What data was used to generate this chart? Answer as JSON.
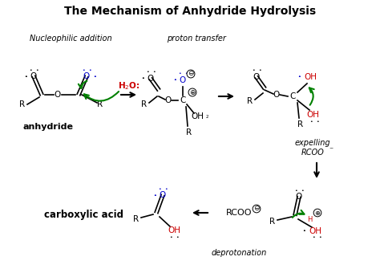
{
  "title": "The Mechanism of Anhydride Hydrolysis",
  "title_fontsize": 10,
  "bg_color": "#ffffff",
  "figsize": [
    4.74,
    3.4
  ],
  "dpi": 100,
  "labels": {
    "nucleophilic_addition": "Nucleophilic addition",
    "proton_transfer": "proton transfer",
    "anhydride": "anhydride",
    "carboxylic_acid": "carboxylic acid",
    "expelling": "expelling\nRCOO",
    "deprotonation": "deprotonation"
  },
  "colors": {
    "black": "#000000",
    "red": "#cc0000",
    "blue": "#0000cc",
    "green": "#008000"
  }
}
